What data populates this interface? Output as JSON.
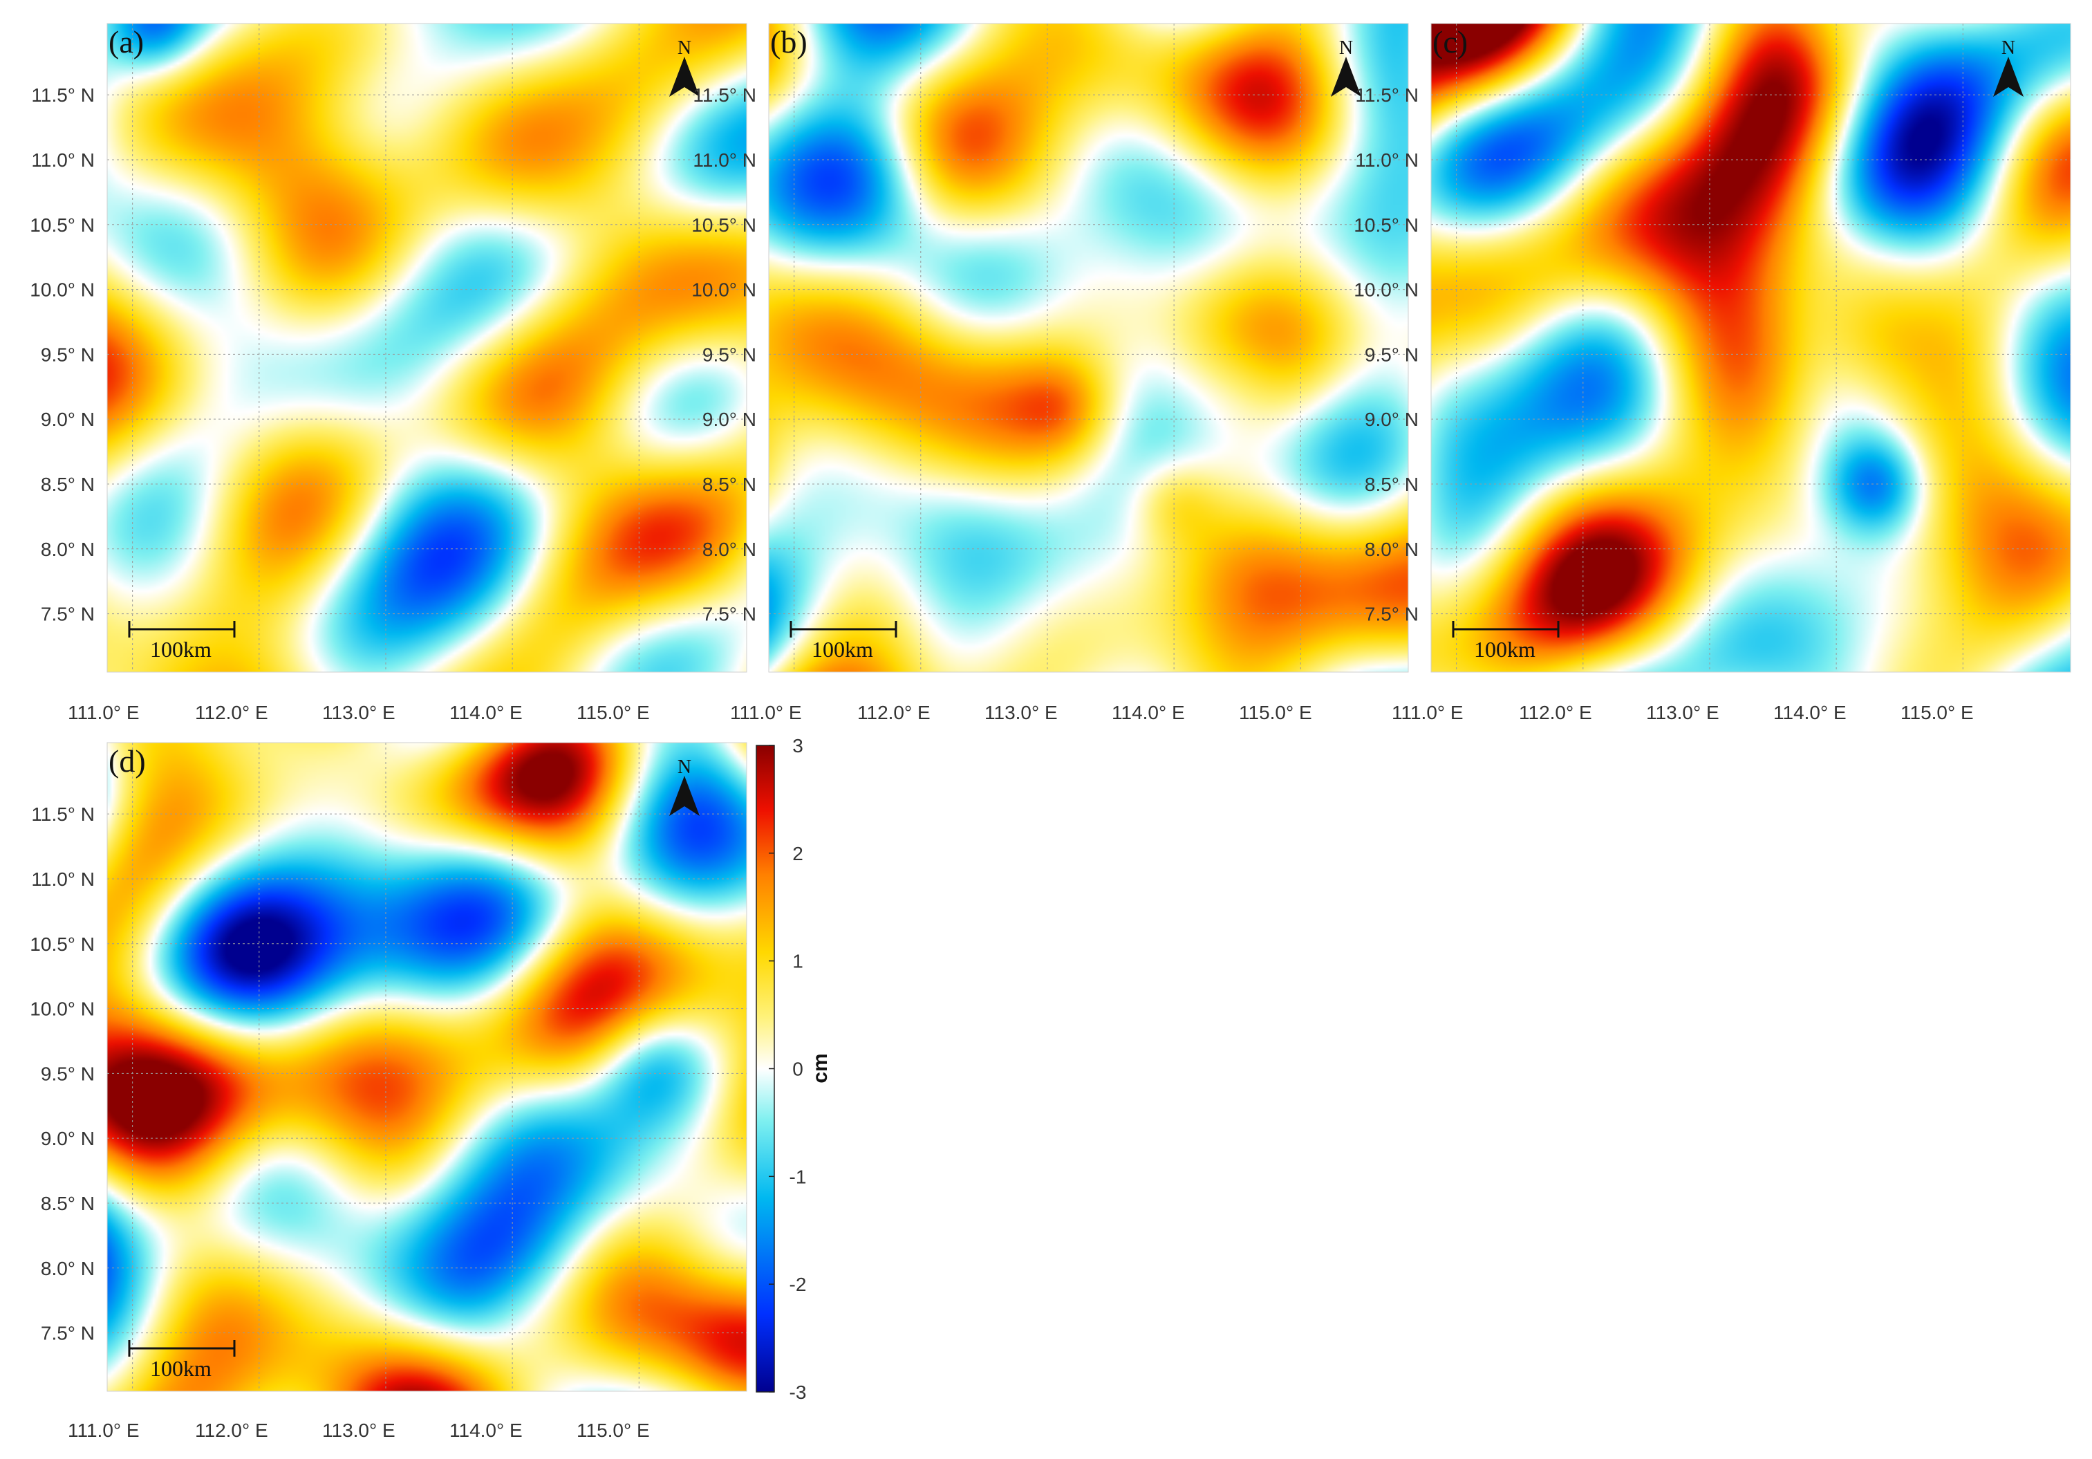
{
  "figure": {
    "panels": [
      {
        "letter": "(a)",
        "field": "a"
      },
      {
        "letter": "(b)",
        "field": "b"
      },
      {
        "letter": "(c)",
        "field": "c"
      },
      {
        "letter": "(d)",
        "field": "d"
      }
    ],
    "lat_ticks": [
      "11.5° N",
      "11.0° N",
      "10.5° N",
      "10.0° N",
      "9.5° N",
      "9.0° N",
      "8.5° N",
      "8.0° N",
      "7.5° N"
    ],
    "lon_ticks": [
      "111.0° E",
      "112.0° E",
      "113.0° E",
      "114.0° E",
      "115.0° E"
    ],
    "north_label": "N",
    "scale_bar_label": "100km",
    "colorbar": {
      "ticks": [
        "3",
        "2",
        "1",
        "0",
        "-1",
        "-2",
        "-3"
      ],
      "unit": "cm",
      "range": [
        -3,
        3
      ],
      "colormap": [
        "#00008f",
        "#0030ff",
        "#00b8f0",
        "#7ff0f0",
        "#ffffff",
        "#fff27a",
        "#ffd800",
        "#ff8000",
        "#ee1000",
        "#8a0000"
      ]
    },
    "map_extent": {
      "lon": [
        110.8,
        115.85
      ],
      "lat": [
        7.05,
        12.05
      ]
    }
  },
  "chart_data": {
    "type": "heatmap",
    "title": "",
    "xlabel": "",
    "ylabel": "",
    "xlim": [
      110.8,
      115.85
    ],
    "ylim": [
      7.05,
      12.05
    ],
    "x_ticks": [
      111.0,
      112.0,
      113.0,
      114.0,
      115.0
    ],
    "y_ticks": [
      7.5,
      8.0,
      8.5,
      9.0,
      9.5,
      10.0,
      10.5,
      11.0,
      11.5
    ],
    "value_range": [
      -3,
      3
    ],
    "unit": "cm",
    "grid": true,
    "panels": [
      "(a)",
      "(b)",
      "(c)",
      "(d)"
    ]
  }
}
